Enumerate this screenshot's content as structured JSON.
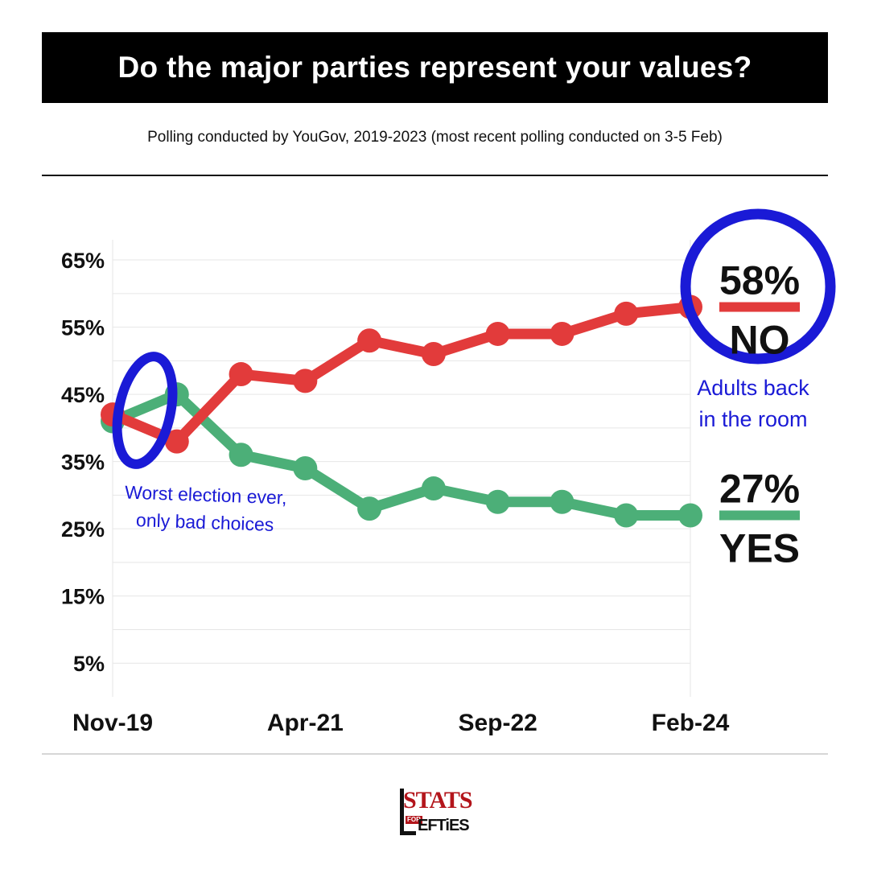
{
  "header": {
    "title": "Do the major parties represent your values?",
    "subtitle": "Polling conducted by YouGov, 2019-2023 (most recent polling conducted on 3-5 Feb)"
  },
  "colors": {
    "no": "#e23b3b",
    "yes": "#4caf78",
    "annotation": "#1a1ad6",
    "grid": "#e6e6e6"
  },
  "chart_data": {
    "type": "line",
    "title": "Do the major parties represent your values?",
    "subtitle": "Polling conducted by YouGov, 2019-2023 (most recent polling conducted on 3-5 Feb)",
    "xlabel": "",
    "ylabel": "",
    "x_ticks": [
      "Nov-19",
      "Apr-21",
      "Sep-22",
      "Feb-24"
    ],
    "y_ticks": [
      "5%",
      "15%",
      "25%",
      "35%",
      "45%",
      "55%",
      "65%"
    ],
    "ylim": [
      0,
      68
    ],
    "grid": true,
    "legend": "none (end labels at right)",
    "series": [
      {
        "name": "NO",
        "values": [
          42,
          38,
          48,
          47,
          53,
          51,
          54,
          54,
          57,
          58
        ]
      },
      {
        "name": "YES",
        "values": [
          41,
          45,
          36,
          34,
          28,
          31,
          29,
          29,
          27,
          27
        ]
      }
    ],
    "end_labels": {
      "no": {
        "value": "58%",
        "label": "NO"
      },
      "yes": {
        "value": "27%",
        "label": "YES"
      }
    },
    "annotations": [
      {
        "text_lines": [
          "Worst election ever,",
          "only bad choices"
        ]
      },
      {
        "text_lines": [
          "Adults back",
          "in the room"
        ]
      }
    ]
  },
  "logo": {
    "text_top": "STATS",
    "text_small": "FOR",
    "text_bottom": "EFTiES"
  }
}
